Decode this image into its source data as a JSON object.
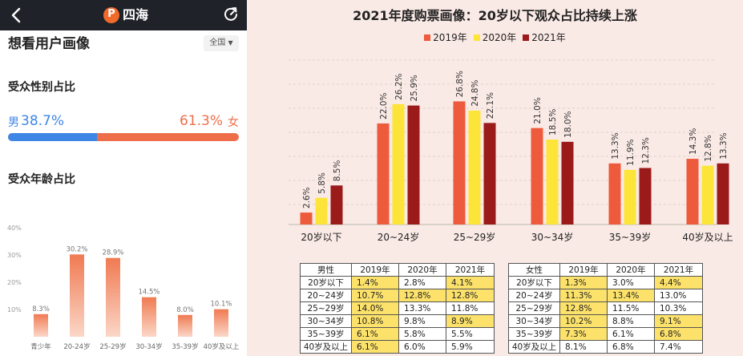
{
  "app": {
    "title": "四海",
    "logo_glyph": "P"
  },
  "page": {
    "title": "想看用户画像",
    "region_select": "全国"
  },
  "gender": {
    "title": "受众性别占比",
    "male_label": "男",
    "male_pct": "38.7%",
    "male_value": 38.7,
    "female_label": "女",
    "female_pct": "61.3%",
    "female_value": 61.3
  },
  "age": {
    "title": "受众年龄占比",
    "chart_data": {
      "type": "bar",
      "categories": [
        "青少年",
        "20-24岁",
        "25-29岁",
        "30-34岁",
        "35-39岁",
        "40岁及以上"
      ],
      "values": [
        8.3,
        30.2,
        28.9,
        14.5,
        8.0,
        10.1
      ],
      "value_labels": [
        "8.3%",
        "30.2%",
        "28.9%",
        "14.5%",
        "8.0%",
        "10.1%"
      ],
      "yticks": [
        "10%",
        "20%",
        "30%",
        "40%"
      ],
      "ytick_values": [
        10,
        20,
        30,
        40
      ],
      "ylim": [
        0,
        40
      ]
    }
  },
  "colors": {
    "male": "#3e86e6",
    "female": "#ee6e4a",
    "age_bar_top": "#f07a52",
    "age_bar_bottom": "#fbd7c8",
    "s2019": "#ee5a3c",
    "s2020": "#fde439",
    "s2021": "#9b1b1b"
  },
  "icons": {
    "back": "chevron-left-icon",
    "refresh": "refresh-icon"
  },
  "right": {
    "title": "2021年度购票画像：20岁以下观众占比持续上涨",
    "chart_data": {
      "type": "bar",
      "categories": [
        "20岁以下",
        "20~24岁",
        "25~29岁",
        "30~34岁",
        "35~39岁",
        "40岁及以上"
      ],
      "series": [
        {
          "name": "2019年",
          "values": [
            2.6,
            22.0,
            26.8,
            21.0,
            13.3,
            14.3
          ],
          "labels": [
            "2.6%",
            "22.0%",
            "26.8%",
            "21.0%",
            "13.3%",
            "14.3%"
          ]
        },
        {
          "name": "2020年",
          "values": [
            5.8,
            26.2,
            24.8,
            18.5,
            11.9,
            12.8
          ],
          "labels": [
            "5.8%",
            "26.2%",
            "24.8%",
            "18.5%",
            "11.9%",
            "12.8%"
          ]
        },
        {
          "name": "2021年",
          "values": [
            8.5,
            25.9,
            22.1,
            18.0,
            12.3,
            13.3
          ],
          "labels": [
            "8.5%",
            "25.9%",
            "22.1%",
            "18.0%",
            "12.3%",
            "13.3%"
          ]
        }
      ],
      "legend_position": "top",
      "grid": true
    },
    "tables": {
      "male": {
        "headers": [
          "男性",
          "2019年",
          "2020年",
          "2021年"
        ],
        "rows": [
          {
            "label": "20岁以下",
            "values": [
              "1.4%",
              "2.8%",
              "4.1%"
            ],
            "highlight": [
              true,
              false,
              true
            ]
          },
          {
            "label": "20~24岁",
            "values": [
              "10.7%",
              "12.8%",
              "12.8%"
            ],
            "highlight": [
              true,
              true,
              true
            ]
          },
          {
            "label": "25~29岁",
            "values": [
              "14.0%",
              "13.3%",
              "11.8%"
            ],
            "highlight": [
              true,
              false,
              false
            ]
          },
          {
            "label": "30~34岁",
            "values": [
              "10.8%",
              "9.8%",
              "8.9%"
            ],
            "highlight": [
              true,
              false,
              true
            ]
          },
          {
            "label": "35~39岁",
            "values": [
              "6.1%",
              "5.8%",
              "5.5%"
            ],
            "highlight": [
              true,
              false,
              false
            ]
          },
          {
            "label": "40岁及以上",
            "values": [
              "6.1%",
              "6.0%",
              "5.9%"
            ],
            "highlight": [
              true,
              false,
              false
            ]
          }
        ]
      },
      "female": {
        "headers": [
          "女性",
          "2019年",
          "2020年",
          "2021年"
        ],
        "rows": [
          {
            "label": "20岁以下",
            "values": [
              "1.3%",
              "3.0%",
              "4.4%"
            ],
            "highlight": [
              true,
              false,
              true
            ]
          },
          {
            "label": "20~24岁",
            "values": [
              "11.3%",
              "13.4%",
              "13.0%"
            ],
            "highlight": [
              true,
              true,
              false
            ]
          },
          {
            "label": "25~29岁",
            "values": [
              "12.8%",
              "11.5%",
              "10.3%"
            ],
            "highlight": [
              true,
              false,
              false
            ]
          },
          {
            "label": "30~34岁",
            "values": [
              "10.2%",
              "8.8%",
              "9.1%"
            ],
            "highlight": [
              true,
              false,
              true
            ]
          },
          {
            "label": "35~39岁",
            "values": [
              "7.3%",
              "6.1%",
              "6.8%"
            ],
            "highlight": [
              true,
              false,
              true
            ]
          },
          {
            "label": "40岁及以上",
            "values": [
              "8.1%",
              "6.8%",
              "7.4%"
            ],
            "highlight": [
              false,
              false,
              false
            ]
          }
        ]
      }
    }
  }
}
